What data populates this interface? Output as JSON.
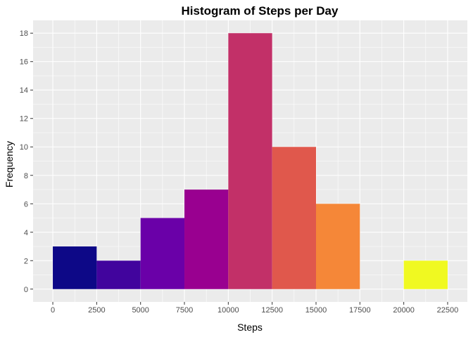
{
  "chart_data": {
    "type": "bar",
    "title": "Histogram of Steps per Day",
    "xlabel": "Steps",
    "ylabel": "Frequency",
    "xlim": [
      -1125,
      23625
    ],
    "ylim": [
      -0.9,
      18.9
    ],
    "x_ticks": [
      "0",
      "2500",
      "5000",
      "7500",
      "10000",
      "12500",
      "15000",
      "17500",
      "20000",
      "22500"
    ],
    "y_ticks": [
      "0",
      "2",
      "4",
      "6",
      "8",
      "10",
      "12",
      "14",
      "16",
      "18"
    ],
    "bins": [
      {
        "from": 0,
        "to": 2500,
        "count": 3,
        "color": "#0d0887"
      },
      {
        "from": 2500,
        "to": 5000,
        "count": 2,
        "color": "#41049d"
      },
      {
        "from": 5000,
        "to": 7500,
        "count": 5,
        "color": "#6a00a8"
      },
      {
        "from": 7500,
        "to": 10000,
        "count": 7,
        "color": "#990090"
      },
      {
        "from": 10000,
        "to": 12500,
        "count": 18,
        "color": "#c23068"
      },
      {
        "from": 12500,
        "to": 15000,
        "count": 10,
        "color": "#e0584c"
      },
      {
        "from": 15000,
        "to": 17500,
        "count": 6,
        "color": "#f58738"
      },
      {
        "from": 17500,
        "to": 20000,
        "count": 0,
        "color": "#fcb631"
      },
      {
        "from": 20000,
        "to": 22500,
        "count": 2,
        "color": "#f0f921"
      }
    ],
    "grid": true,
    "panel_background": "#ebebeb",
    "grid_color": "#ffffff"
  }
}
